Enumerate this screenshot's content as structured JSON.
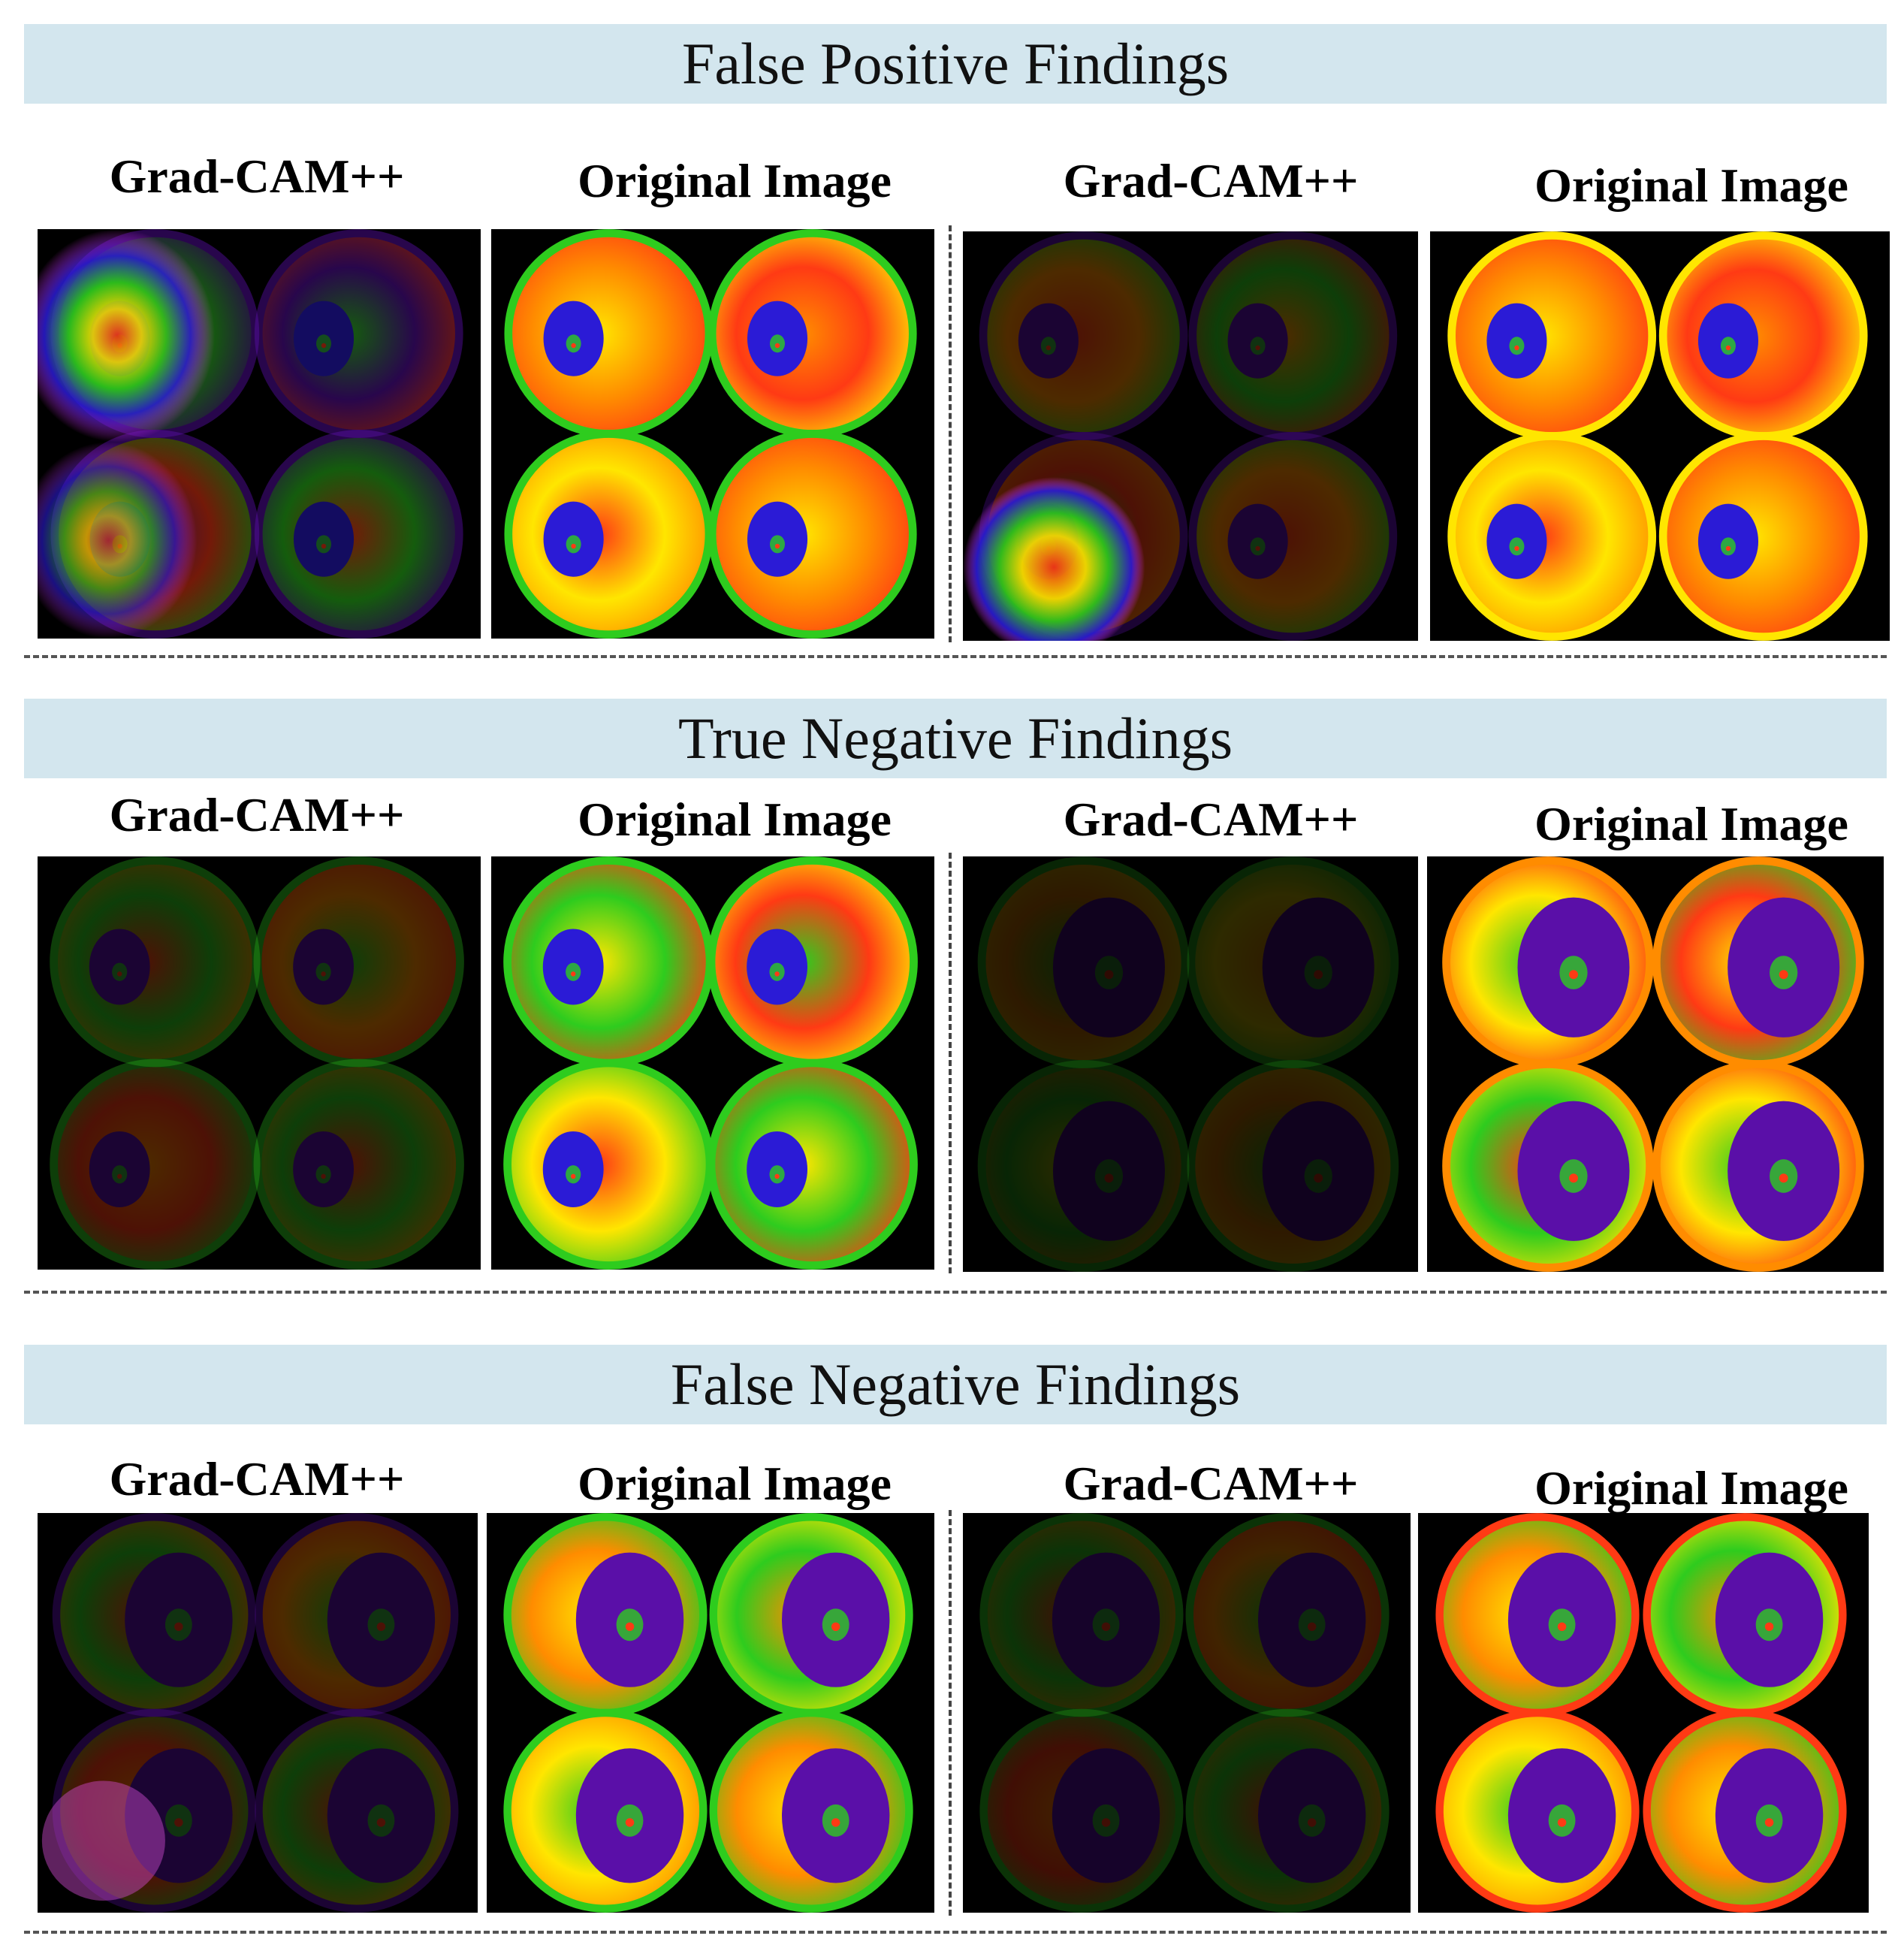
{
  "sections": [
    {
      "title": "False Positive Findings"
    },
    {
      "title": "True Negative Findings"
    },
    {
      "title": "False Negative Findings"
    }
  ],
  "labels": {
    "gradcam": "Grad-CAM++",
    "original": "Original Image"
  },
  "colors": {
    "banner": "#d3e6ee",
    "panel_bg": "#000000",
    "heat_red": "#ff3a14",
    "heat_orange": "#ff8c00",
    "heat_yellow": "#ffe600",
    "heat_green": "#2ecc1e",
    "heat_blue": "#2b1bd6",
    "heat_purple": "#5a0fa8"
  }
}
